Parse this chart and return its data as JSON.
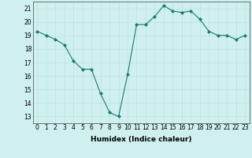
{
  "x": [
    0,
    1,
    2,
    3,
    4,
    5,
    6,
    7,
    8,
    9,
    10,
    11,
    12,
    13,
    14,
    15,
    16,
    17,
    18,
    19,
    20,
    21,
    22,
    23
  ],
  "y": [
    19.3,
    19.0,
    18.7,
    18.3,
    17.1,
    16.5,
    16.5,
    14.7,
    13.3,
    13.0,
    16.1,
    19.8,
    19.8,
    20.4,
    21.2,
    20.8,
    20.7,
    20.8,
    20.2,
    19.3,
    19.0,
    19.0,
    18.7,
    19.0
  ],
  "xlabel": "Humidex (Indice chaleur)",
  "ylim": [
    12.5,
    21.5
  ],
  "xlim": [
    -0.5,
    23.5
  ],
  "yticks": [
    13,
    14,
    15,
    16,
    17,
    18,
    19,
    20,
    21
  ],
  "xticks": [
    0,
    1,
    2,
    3,
    4,
    5,
    6,
    7,
    8,
    9,
    10,
    11,
    12,
    13,
    14,
    15,
    16,
    17,
    18,
    19,
    20,
    21,
    22,
    23
  ],
  "xtick_labels": [
    "0",
    "1",
    "2",
    "3",
    "4",
    "5",
    "6",
    "7",
    "8",
    "9",
    "10",
    "11",
    "12",
    "13",
    "14",
    "15",
    "16",
    "17",
    "18",
    "19",
    "20",
    "21",
    "22",
    "23"
  ],
  "line_color": "#1a7a6e",
  "marker": "D",
  "marker_size": 2.0,
  "bg_color": "#cff0ef",
  "grid_color": "#b8deda",
  "xlabel_fontsize": 6.5,
  "tick_fontsize": 5.5
}
